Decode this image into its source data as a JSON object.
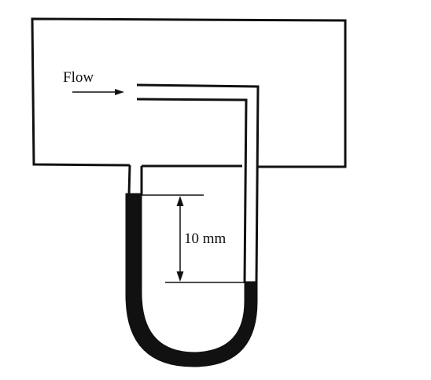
{
  "diagram": {
    "flow_label": "Flow",
    "measurement_label": "10 mm",
    "colors": {
      "ink": "#111111",
      "manometer_fluid": "#111111",
      "background": "#ffffff"
    }
  }
}
